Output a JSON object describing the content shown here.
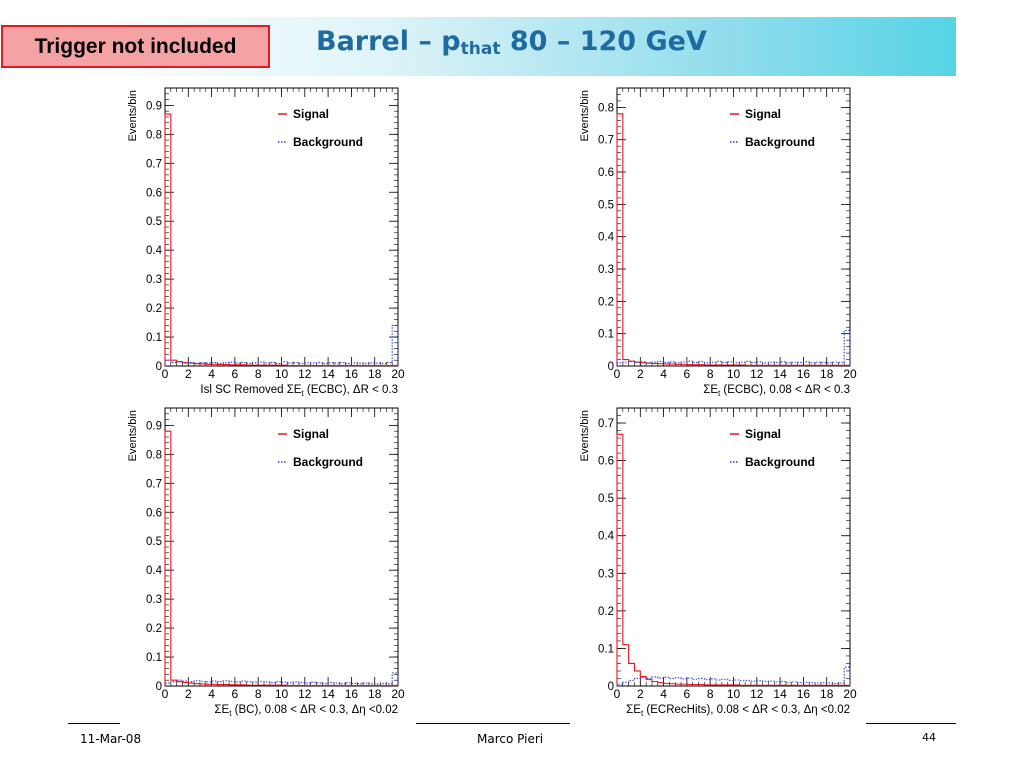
{
  "slide": {
    "trigger_label": "Trigger not included",
    "title_prefix": "Barrel – p",
    "title_sub": "that",
    "title_suffix": " 80 – 120 GeV",
    "footer_date": "11-Mar-08",
    "footer_author": "Marco Pieri",
    "page_number": "44",
    "colors": {
      "title": "#1f6aa0",
      "signal": "#e8141c",
      "background": "#2f3fd8",
      "trigger_border": "#e01b24",
      "trigger_fill": "#f4a2a4"
    }
  },
  "chart_data": [
    {
      "type": "histogram",
      "ylabel": "Events/bin",
      "xlabel": "Isl SC Removed ΣE_t (ECBC), ΔR < 0.3",
      "xlim": [
        0,
        20
      ],
      "ylim": [
        0,
        0.96
      ],
      "yticks": [
        0,
        0.1,
        0.2,
        0.3,
        0.4,
        0.5,
        0.6,
        0.7,
        0.8,
        0.9
      ],
      "xticks": [
        0,
        2,
        4,
        6,
        8,
        10,
        12,
        14,
        16,
        18,
        20
      ],
      "legend_position": "top-right",
      "series": [
        {
          "name": "Signal",
          "color": "#e8141c",
          "style": "solid",
          "values": [
            0.87,
            0.02,
            0.015,
            0.012,
            0.01,
            0.008,
            0.007,
            0.006,
            0.006,
            0.005,
            0.005,
            0.004,
            0.004,
            0.004,
            0.003,
            0.003,
            0.003,
            0.003,
            0.003,
            0.003,
            0.003,
            0.002,
            0.002,
            0.002,
            0.002,
            0.002,
            0.002,
            0.002,
            0.002,
            0.002,
            0.002,
            0.002,
            0.002,
            0.002,
            0.002,
            0.002,
            0.002,
            0.002,
            0.002,
            0.002
          ]
        },
        {
          "name": "Background",
          "color": "#2f3fd8",
          "style": "dotted",
          "values": [
            0.02,
            0.012,
            0.015,
            0.01,
            0.012,
            0.009,
            0.011,
            0.01,
            0.012,
            0.009,
            0.011,
            0.013,
            0.01,
            0.012,
            0.009,
            0.011,
            0.013,
            0.01,
            0.012,
            0.009,
            0.014,
            0.01,
            0.012,
            0.009,
            0.011,
            0.01,
            0.012,
            0.009,
            0.011,
            0.01,
            0.012,
            0.009,
            0.011,
            0.01,
            0.009,
            0.011,
            0.01,
            0.009,
            0.012,
            0.14
          ]
        }
      ]
    },
    {
      "type": "histogram",
      "ylabel": "Events/bin",
      "xlabel": "ΣE_t (ECBC), 0.08 < ΔR < 0.3",
      "xlim": [
        0,
        20
      ],
      "ylim": [
        0,
        0.86
      ],
      "yticks": [
        0,
        0.1,
        0.2,
        0.3,
        0.4,
        0.5,
        0.6,
        0.7,
        0.8
      ],
      "xticks": [
        0,
        2,
        4,
        6,
        8,
        10,
        12,
        14,
        16,
        18,
        20
      ],
      "legend_position": "top-right",
      "series": [
        {
          "name": "Signal",
          "color": "#e8141c",
          "style": "solid",
          "values": [
            0.78,
            0.02,
            0.015,
            0.012,
            0.01,
            0.009,
            0.008,
            0.007,
            0.006,
            0.006,
            0.005,
            0.005,
            0.004,
            0.004,
            0.004,
            0.003,
            0.003,
            0.003,
            0.003,
            0.003,
            0.003,
            0.003,
            0.002,
            0.002,
            0.002,
            0.002,
            0.002,
            0.002,
            0.002,
            0.002,
            0.002,
            0.002,
            0.002,
            0.002,
            0.002,
            0.002,
            0.002,
            0.002,
            0.002,
            0.002
          ]
        },
        {
          "name": "Background",
          "color": "#2f3fd8",
          "style": "dotted",
          "values": [
            0.01,
            0.012,
            0.014,
            0.011,
            0.013,
            0.01,
            0.012,
            0.014,
            0.011,
            0.013,
            0.01,
            0.012,
            0.015,
            0.011,
            0.013,
            0.01,
            0.012,
            0.014,
            0.011,
            0.013,
            0.01,
            0.012,
            0.014,
            0.011,
            0.013,
            0.01,
            0.012,
            0.011,
            0.013,
            0.01,
            0.012,
            0.011,
            0.013,
            0.01,
            0.012,
            0.011,
            0.01,
            0.012,
            0.011,
            0.11
          ]
        }
      ]
    },
    {
      "type": "histogram",
      "ylabel": "Events/bin",
      "xlabel": "ΣE_t (BC), 0.08 < ΔR < 0.3, Δη <0.02",
      "xlim": [
        0,
        20
      ],
      "ylim": [
        0,
        0.96
      ],
      "yticks": [
        0,
        0.1,
        0.2,
        0.3,
        0.4,
        0.5,
        0.6,
        0.7,
        0.8,
        0.9
      ],
      "xticks": [
        0,
        2,
        4,
        6,
        8,
        10,
        12,
        14,
        16,
        18,
        20
      ],
      "legend_position": "top-right",
      "series": [
        {
          "name": "Signal",
          "color": "#e8141c",
          "style": "solid",
          "values": [
            0.88,
            0.02,
            0.015,
            0.012,
            0.01,
            0.008,
            0.007,
            0.006,
            0.006,
            0.005,
            0.005,
            0.004,
            0.004,
            0.004,
            0.003,
            0.003,
            0.003,
            0.003,
            0.003,
            0.003,
            0.003,
            0.002,
            0.002,
            0.002,
            0.002,
            0.002,
            0.002,
            0.002,
            0.002,
            0.002,
            0.002,
            0.002,
            0.002,
            0.002,
            0.002,
            0.002,
            0.002,
            0.002,
            0.002,
            0.002
          ]
        },
        {
          "name": "Background",
          "color": "#2f3fd8",
          "style": "dotted",
          "values": [
            0.01,
            0.015,
            0.02,
            0.017,
            0.015,
            0.018,
            0.016,
            0.014,
            0.017,
            0.015,
            0.018,
            0.016,
            0.014,
            0.017,
            0.015,
            0.013,
            0.016,
            0.014,
            0.012,
            0.015,
            0.013,
            0.011,
            0.014,
            0.012,
            0.01,
            0.013,
            0.011,
            0.009,
            0.012,
            0.01,
            0.008,
            0.011,
            0.009,
            0.008,
            0.01,
            0.008,
            0.007,
            0.009,
            0.008,
            0.045
          ]
        }
      ]
    },
    {
      "type": "histogram",
      "ylabel": "Events/bin",
      "xlabel": "ΣE_t (ECRecHits), 0.08 < ΔR < 0.3, Δη <0.02",
      "xlim": [
        0,
        20
      ],
      "ylim": [
        0,
        0.74
      ],
      "yticks": [
        0,
        0.1,
        0.2,
        0.3,
        0.4,
        0.5,
        0.6,
        0.7
      ],
      "xticks": [
        0,
        2,
        4,
        6,
        8,
        10,
        12,
        14,
        16,
        18,
        20
      ],
      "legend_position": "top-right",
      "series": [
        {
          "name": "Signal",
          "color": "#e8141c",
          "style": "solid",
          "values": [
            0.67,
            0.11,
            0.06,
            0.04,
            0.025,
            0.017,
            0.012,
            0.009,
            0.007,
            0.006,
            0.005,
            0.005,
            0.004,
            0.004,
            0.004,
            0.003,
            0.003,
            0.003,
            0.003,
            0.003,
            0.003,
            0.002,
            0.002,
            0.002,
            0.002,
            0.002,
            0.002,
            0.002,
            0.002,
            0.002,
            0.002,
            0.002,
            0.002,
            0.002,
            0.002,
            0.002,
            0.002,
            0.002,
            0.002,
            0.002
          ]
        },
        {
          "name": "Background",
          "color": "#2f3fd8",
          "style": "dotted",
          "values": [
            0.005,
            0.01,
            0.015,
            0.02,
            0.022,
            0.02,
            0.024,
            0.021,
            0.023,
            0.02,
            0.022,
            0.019,
            0.021,
            0.018,
            0.02,
            0.017,
            0.019,
            0.016,
            0.018,
            0.015,
            0.016,
            0.014,
            0.015,
            0.013,
            0.014,
            0.012,
            0.013,
            0.011,
            0.012,
            0.01,
            0.011,
            0.009,
            0.01,
            0.009,
            0.008,
            0.009,
            0.008,
            0.007,
            0.008,
            0.05
          ]
        }
      ]
    }
  ]
}
